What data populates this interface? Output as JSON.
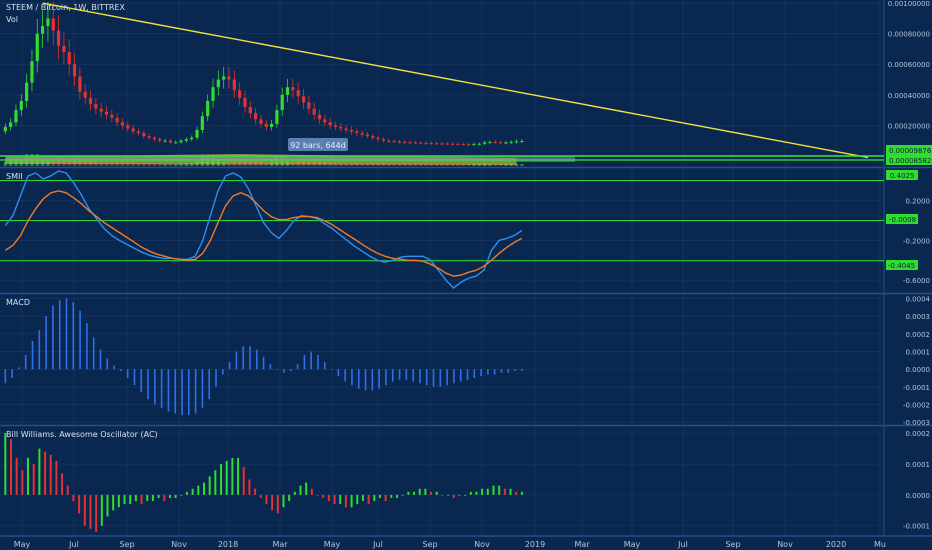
{
  "colors": {
    "background": "#0a2750",
    "grid": "#1c3a66",
    "separator": "#24508a",
    "axis_text": "#b4c4da",
    "label_text": "#d6e0ee",
    "candle_up": "#2fdc2f",
    "candle_down": "#e43131",
    "trendline": "#f2e23a",
    "support_line": "#35e835",
    "smi_line": "#2e8ef0",
    "smi_signal": "#f07a28",
    "macd_hist": "#2f6fe8",
    "badge_bg": "#2fdc2f",
    "badge_text": "#102040",
    "bars_label_bg": "#5a7fb0"
  },
  "header": {
    "symbol": "STEEM / Bitcoin, 1W, BITTREX",
    "vol_label": "Vol"
  },
  "measure_label": "92 bars, 644d",
  "x_axis_labels": [
    "May",
    "Jul",
    "Sep",
    "Nov",
    "2018",
    "Mar",
    "May",
    "Jul",
    "Sep",
    "Nov",
    "2019",
    "Mar",
    "May",
    "Jul",
    "Sep",
    "Nov",
    "2020",
    "Mu"
  ],
  "panels": {
    "price": {
      "y_ticks": [
        "0.00100000",
        "0.00080000",
        "0.00060000",
        "0.00040000",
        "0.00020000"
      ]
    },
    "smi": {
      "title": "SMII",
      "y_ticks": [
        "0.2000",
        "-0.2000",
        "-0.6000"
      ]
    },
    "macd": {
      "title": "MACD",
      "y_ticks": [
        "0.0004",
        "0.0003",
        "0.0002",
        "0.0001",
        "0.0000",
        "-0.0001",
        "-0.0002",
        "-0.0003"
      ]
    },
    "ac": {
      "title": "Bill Williams. Awesome Oscillator (AC)",
      "y_ticks": [
        "0.0002",
        "0.0001",
        "0.0000",
        "-0.0001"
      ]
    }
  },
  "badges": {
    "price_upper": "0.00009876",
    "price_lower": "0.00008582",
    "smi_upper": "0.4025",
    "smi_mid": "-0.0008",
    "smi_lower": "-0.4045"
  },
  "chart_data": [
    {
      "type": "candlestick",
      "title": "STEEM / Bitcoin, 1W, BITTREX",
      "ylim": [
        0,
        0.00102
      ],
      "x_domain_weeks": [
        0,
        166
      ],
      "close": [
        0.00019,
        0.00022,
        0.0003,
        0.00036,
        0.00048,
        0.00062,
        0.0008,
        0.00085,
        0.0009,
        0.00082,
        0.00072,
        0.00068,
        0.0006,
        0.00052,
        0.00042,
        0.00038,
        0.00034,
        0.00031,
        0.00029,
        0.00027,
        0.00025,
        0.00022,
        0.0002,
        0.00018,
        0.00016,
        0.00015,
        0.00013,
        0.00012,
        0.00011,
        0.0001,
        0.0001,
        9e-05,
        9e-05,
        0.0001,
        0.00011,
        0.00012,
        0.00017,
        0.00026,
        0.00036,
        0.00045,
        0.0005,
        0.00052,
        0.0005,
        0.00043,
        0.00038,
        0.00032,
        0.00028,
        0.00024,
        0.00021,
        0.00019,
        0.00021,
        0.0003,
        0.0004,
        0.00045,
        0.00043,
        0.00039,
        0.00035,
        0.00031,
        0.00027,
        0.00024,
        0.00022,
        0.0002,
        0.00019,
        0.00018,
        0.00017,
        0.00016,
        0.00015,
        0.00014,
        0.00013,
        0.00012,
        0.00011,
        0.0001,
        9.8e-05,
        9.5e-05,
        9.2e-05,
        9e-05,
        8.8e-05,
        8.6e-05,
        8.5e-05,
        8.4e-05,
        8.3e-05,
        8.2e-05,
        8.1e-05,
        8e-05,
        7.9e-05,
        7.8e-05,
        7.7e-05,
        7.6e-05,
        7.8e-05,
        8e-05,
        8.8e-05,
        9.2e-05,
        9e-05,
        8.6e-05,
        8.8e-05,
        9.2e-05,
        9.6e-05,
        9.8e-05
      ]
    },
    {
      "type": "line",
      "title": "Trendline",
      "x": [
        8,
        163
      ],
      "y": [
        0.001,
        -1e-05
      ]
    },
    {
      "type": "line",
      "title": "SMII",
      "ylim": [
        -0.72,
        0.52
      ],
      "series": [
        {
          "values": [
            -0.05,
            0.05,
            0.25,
            0.45,
            0.48,
            0.42,
            0.45,
            0.5,
            0.48,
            0.38,
            0.26,
            0.12,
            0.02,
            -0.08,
            -0.15,
            -0.2,
            -0.24,
            -0.28,
            -0.32,
            -0.35,
            -0.37,
            -0.38,
            -0.38,
            -0.39,
            -0.39,
            -0.36,
            -0.2,
            0.05,
            0.3,
            0.45,
            0.48,
            0.44,
            0.32,
            0.15,
            -0.02,
            -0.12,
            -0.18,
            -0.1,
            0.0,
            0.05,
            0.04,
            0.02,
            -0.03,
            -0.08,
            -0.14,
            -0.2,
            -0.26,
            -0.31,
            -0.36,
            -0.4,
            -0.42,
            -0.4,
            -0.37,
            -0.36,
            -0.36,
            -0.36,
            -0.4,
            -0.5,
            -0.6,
            -0.68,
            -0.62,
            -0.58,
            -0.56,
            -0.5,
            -0.3,
            -0.2,
            -0.18,
            -0.15,
            -0.1
          ]
        },
        {
          "values": [
            -0.3,
            -0.25,
            -0.15,
            0.0,
            0.12,
            0.22,
            0.28,
            0.3,
            0.28,
            0.23,
            0.17,
            0.1,
            0.04,
            -0.02,
            -0.07,
            -0.12,
            -0.17,
            -0.22,
            -0.27,
            -0.31,
            -0.34,
            -0.36,
            -0.38,
            -0.39,
            -0.4,
            -0.39,
            -0.33,
            -0.2,
            -0.02,
            0.15,
            0.25,
            0.28,
            0.25,
            0.18,
            0.1,
            0.04,
            0.01,
            0.01,
            0.03,
            0.04,
            0.04,
            0.03,
            0.0,
            -0.04,
            -0.09,
            -0.14,
            -0.19,
            -0.24,
            -0.29,
            -0.33,
            -0.36,
            -0.38,
            -0.39,
            -0.4,
            -0.4,
            -0.41,
            -0.44,
            -0.48,
            -0.53,
            -0.56,
            -0.55,
            -0.52,
            -0.5,
            -0.46,
            -0.4,
            -0.33,
            -0.27,
            -0.22,
            -0.18
          ]
        }
      ],
      "levels": [
        0.4025,
        -0.0008,
        -0.4045
      ]
    },
    {
      "type": "bar",
      "title": "MACD",
      "ylim": [
        -0.00031,
        0.00042
      ],
      "values": [
        -8e-05,
        -5e-05,
        1e-05,
        8e-05,
        0.00016,
        0.00022,
        0.0003,
        0.00036,
        0.00039,
        0.0004,
        0.00038,
        0.00033,
        0.00026,
        0.00018,
        0.00011,
        6e-05,
        2e-05,
        -1e-05,
        -5e-05,
        -9e-05,
        -0.00013,
        -0.00017,
        -0.0002,
        -0.00022,
        -0.00024,
        -0.00025,
        -0.00026,
        -0.00026,
        -0.00025,
        -0.00022,
        -0.00017,
        -0.0001,
        -3e-05,
        4e-05,
        0.0001,
        0.00013,
        0.00013,
        0.00011,
        7e-05,
        3e-05,
        0.0,
        -2e-05,
        -1e-05,
        3e-05,
        8e-05,
        0.0001,
        8e-05,
        4e-05,
        0.0,
        -4e-05,
        -7e-05,
        -9e-05,
        -0.00011,
        -0.00012,
        -0.00012,
        -0.00011,
        -9e-05,
        -7e-05,
        -6e-05,
        -6e-05,
        -7e-05,
        -8e-05,
        -9e-05,
        -0.0001,
        -0.0001,
        -9e-05,
        -8e-05,
        -7e-05,
        -6e-05,
        -5e-05,
        -4e-05,
        -3e-05,
        -3e-05,
        -2e-05,
        -2e-05,
        -1e-05,
        -1e-05
      ]
    },
    {
      "type": "bar",
      "title": "Bill Williams. Awesome Oscillator (AC)",
      "ylim": [
        -0.00013,
        0.00022
      ],
      "values": [
        0.0002,
        0.00018,
        0.00012,
        8e-05,
        0.00012,
        0.0001,
        0.00015,
        0.00014,
        0.00013,
        0.00011,
        7e-05,
        3e-05,
        -2e-05,
        -6e-05,
        -0.0001,
        -0.00011,
        -0.00012,
        -0.0001,
        -7e-05,
        -5e-05,
        -4e-05,
        -3e-05,
        -3e-05,
        -2e-05,
        -3e-05,
        -2e-05,
        -2e-05,
        -1e-05,
        -2e-05,
        -1e-05,
        -1e-05,
        0.0,
        1e-05,
        2e-05,
        3e-05,
        4e-05,
        6e-05,
        8e-05,
        0.0001,
        0.00011,
        0.00012,
        0.00012,
        9e-05,
        5e-05,
        2e-05,
        -1e-05,
        -3e-05,
        -5e-05,
        -6e-05,
        -4e-05,
        -2e-05,
        1e-05,
        3e-05,
        4e-05,
        2e-05,
        0.0,
        -1e-05,
        -2e-05,
        -3e-05,
        -3e-05,
        -4e-05,
        -4e-05,
        -3e-05,
        -2e-05,
        -3e-05,
        -2e-05,
        -1e-05,
        -2e-05,
        -1e-05,
        -1e-05,
        0.0,
        1e-05,
        1e-05,
        2e-05,
        2e-05,
        1e-05,
        1e-05,
        0.0,
        0.0,
        -1e-05,
        0.0,
        0.0,
        1e-05,
        1e-05,
        2e-05,
        2e-05,
        3e-05,
        3e-05,
        2e-05,
        2e-05,
        1e-05,
        1e-05
      ]
    }
  ]
}
